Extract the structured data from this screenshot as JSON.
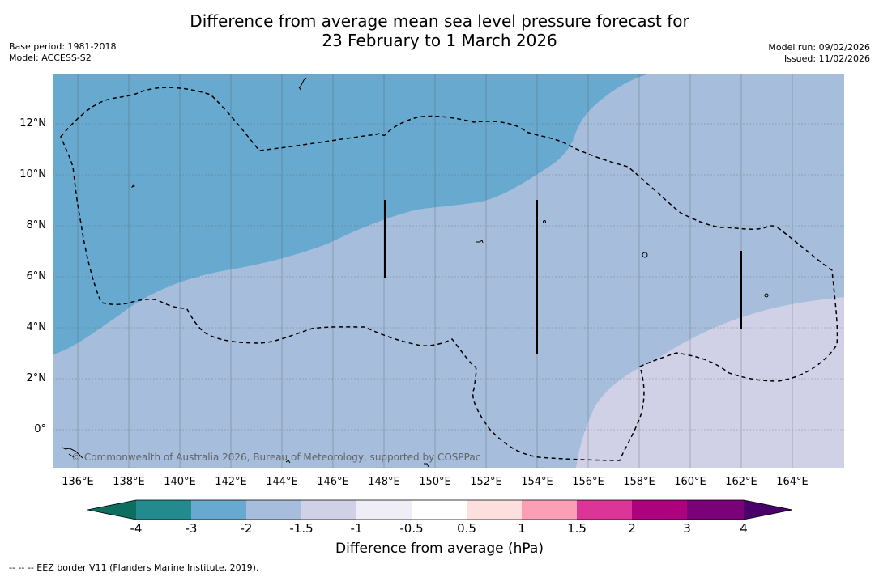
{
  "title": {
    "line1": "Difference from average mean sea level pressure forecast for",
    "line2": "23 February to 1 March 2026"
  },
  "meta_left": {
    "base_period": "Base period: 1981-2018",
    "model": "Model: ACCESS-S2"
  },
  "meta_right": {
    "model_run": "Model run: 09/02/2026",
    "issued": "Issued: 11/02/2026"
  },
  "map": {
    "lon_labels": [
      "136°E",
      "138°E",
      "140°E",
      "142°E",
      "144°E",
      "146°E",
      "148°E",
      "150°E",
      "152°E",
      "154°E",
      "156°E",
      "158°E",
      "160°E",
      "162°E",
      "164°E"
    ],
    "lat_labels": [
      "12°N",
      "10°N",
      "8°N",
      "6°N",
      "4°N",
      "2°N",
      "0°"
    ],
    "colors": {
      "band_-3": "#67a9cf",
      "band_-1.5": "#a6bddb",
      "band_-1": "#d0d1e6",
      "eez": "#000000",
      "grid": "#555555"
    },
    "copyright": "© Commonwealth of Australia 2026, Bureau of Meteorology, supported by COSPPac"
  },
  "colorbar": {
    "ticks": [
      "-4",
      "-3",
      "-2",
      "-1.5",
      "-1",
      "-0.5",
      "0.5",
      "1",
      "1.5",
      "2",
      "3",
      "4"
    ],
    "colors": [
      "#238b8e",
      "#67a9cf",
      "#a6bddb",
      "#d0d1e6",
      "#efedf5",
      "#ffffff",
      "#fde0dd",
      "#fa9fb5",
      "#dd3497",
      "#ae017e",
      "#7a0177"
    ],
    "under_color": "#0b6e5e",
    "over_color": "#49006a",
    "label": "Difference from average (hPa)"
  },
  "footnote": "--  --  -- EEZ border V11 (Flanders Marine Institute, 2019)."
}
